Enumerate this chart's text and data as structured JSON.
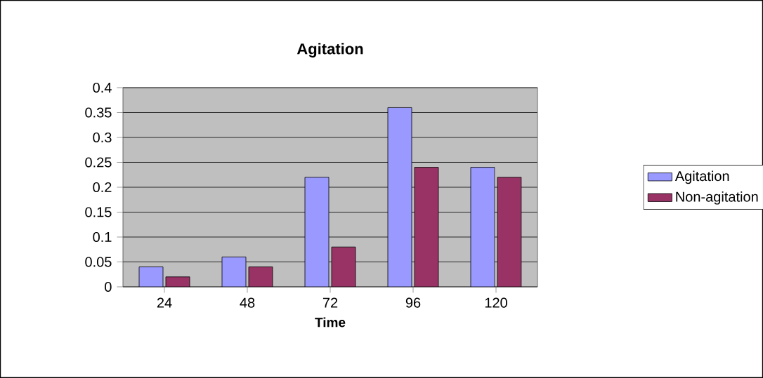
{
  "chart_data": {
    "type": "bar",
    "title": "Agitation",
    "xlabel": "Time",
    "categories": [
      "24",
      "48",
      "72",
      "96",
      "120"
    ],
    "series": [
      {
        "name": "Agitation",
        "color": "#9999ff",
        "values": [
          0.04,
          0.06,
          0.22,
          0.36,
          0.24
        ]
      },
      {
        "name": "Non-agitation",
        "color": "#993366",
        "values": [
          0.02,
          0.04,
          0.08,
          0.24,
          0.22
        ]
      }
    ],
    "ylim": [
      0,
      0.4
    ],
    "yticks": [
      0,
      0.05,
      0.1,
      0.15,
      0.2,
      0.25,
      0.3,
      0.35,
      0.4
    ],
    "grid": "y",
    "legend": "right"
  }
}
